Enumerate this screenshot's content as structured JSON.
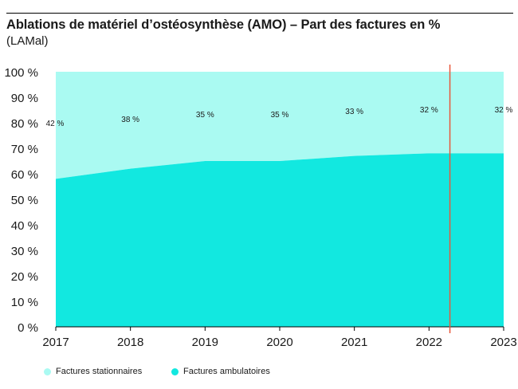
{
  "chart_data": {
    "type": "area",
    "title": "Ablations de matériel d’ostéosynthèse (AMO) – Part des factures en %",
    "subtitle": "(LAMal)",
    "x": [
      "2017",
      "2018",
      "2019",
      "2020",
      "2021",
      "2022",
      "2023"
    ],
    "y_ticks": [
      "0 %",
      "10 %",
      "20 %",
      "30 %",
      "40 %",
      "50 %",
      "60 %",
      "70 %",
      "80 %",
      "90 %",
      "100 %"
    ],
    "ylim": [
      0,
      100
    ],
    "stacked": true,
    "series": [
      {
        "name": "Factures ambulatoires",
        "values": [
          58,
          62,
          65,
          65,
          67,
          68,
          68
        ],
        "color": "#12e8e0"
      },
      {
        "name": "Factures stationnaires",
        "values": [
          42,
          38,
          35,
          35,
          33,
          32,
          32
        ],
        "color": "#aafaf2"
      }
    ],
    "data_labels": [
      "42 %",
      "38 %",
      "35 %",
      "35 %",
      "33 %",
      "32 %",
      "32 %"
    ],
    "marker_line": {
      "x_position": 2022.28,
      "color": "#e8573a"
    }
  }
}
